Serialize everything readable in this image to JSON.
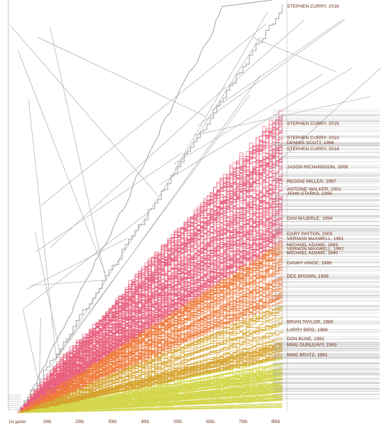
{
  "chart_data": {
    "type": "line",
    "title": "",
    "xlabel": "",
    "ylabel": "",
    "x_ticks": [
      "1st game",
      "10th",
      "20th",
      "30th",
      "40th",
      "50th",
      "60th",
      "70th",
      "80th"
    ],
    "x_tick_games": [
      1,
      10,
      20,
      30,
      40,
      50,
      60,
      70,
      80
    ],
    "ylim": [
      0,
      402
    ],
    "xlim": [
      1,
      82
    ],
    "grid": false,
    "legend": "none",
    "colors": {
      "high": "#e8607e",
      "mid": "#ef7a3a",
      "low_mid": "#d5a32c",
      "low": "#d3d64a",
      "voronoi": "#aaaaaa",
      "label": "#6b2b12"
    },
    "series": [
      {
        "name": "STEPHEN CURRY, 2016",
        "final_value": 402
      },
      {
        "name": "STEPHEN CURRY, 2015",
        "final_value": 286
      },
      {
        "name": "STEPHEN CURRY, 2013",
        "final_value": 272
      },
      {
        "name": "DENNIS SCOTT, 1996",
        "final_value": 267
      },
      {
        "name": "STEPHEN CURRY, 2014",
        "final_value": 261
      },
      {
        "name": "JASON RICHARDSON, 2008",
        "final_value": 243
      },
      {
        "name": "REGGIE MILLER, 1997",
        "final_value": 229
      },
      {
        "name": "ANTOINE WALKER, 2001",
        "final_value": 221
      },
      {
        "name": "JOHN STARKS, 1995",
        "final_value": 217
      },
      {
        "name": "DAN MAJERLE, 1994",
        "final_value": 192
      },
      {
        "name": "GARY PAYTON, 2000",
        "final_value": 177
      },
      {
        "name": "VERNON MAXWELL, 1991",
        "final_value": 172
      },
      {
        "name": "MICHAEL ADAMS, 1989",
        "final_value": 166
      },
      {
        "name": "VERNON MAXWELL, 1992",
        "final_value": 162
      },
      {
        "name": "MICHAEL ADAMS, 1990",
        "final_value": 158
      },
      {
        "name": "DANNY AINGE, 1988",
        "final_value": 148
      },
      {
        "name": "DEE BROWN, 1999",
        "final_value": 135
      },
      {
        "name": "BRIAN TAYLOR, 1980",
        "final_value": 90
      },
      {
        "name": "LARRY BIRD, 1986",
        "final_value": 82
      },
      {
        "name": "DON BUSE, 1982",
        "final_value": 73
      },
      {
        "name": "MIKE DUNLEAVY, 1983",
        "final_value": 67
      },
      {
        "name": "MIKE BRATZ, 1981",
        "final_value": 57
      }
    ]
  }
}
